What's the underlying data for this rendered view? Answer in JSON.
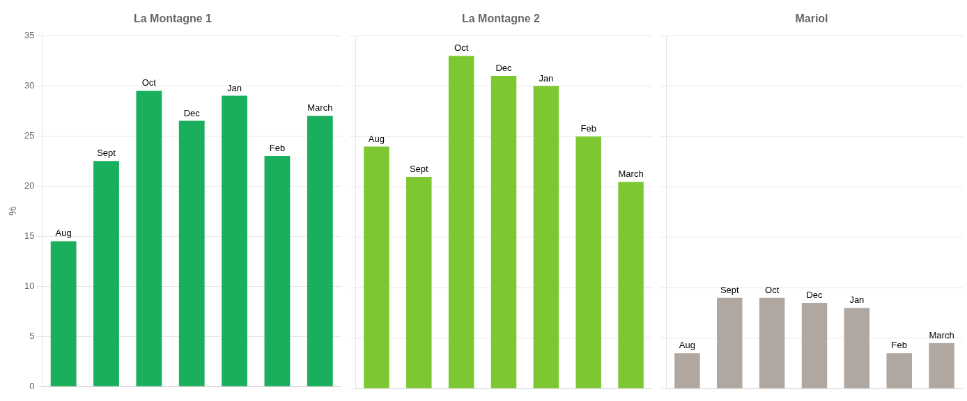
{
  "chart_data": [
    {
      "type": "bar",
      "title": "La Montagne 1",
      "categories": [
        "Aug",
        "Sept",
        "Oct",
        "Dec",
        "Jan",
        "Feb",
        "March"
      ],
      "values": [
        14.5,
        22.5,
        29.5,
        26.5,
        29.0,
        23.0,
        27.0
      ],
      "color": "#1aaf5d",
      "y_label": "%",
      "ylim": [
        0,
        35
      ],
      "yticks": [
        0,
        5,
        10,
        15,
        20,
        25,
        30,
        35
      ],
      "grid": true,
      "tick_labels": "y"
    },
    {
      "type": "bar",
      "title": "La Montagne 2",
      "categories": [
        "Aug",
        "Sept",
        "Oct",
        "Dec",
        "Jan",
        "Feb",
        "March"
      ],
      "values": [
        24.0,
        21.0,
        33.0,
        31.0,
        30.0,
        25.0,
        20.5
      ],
      "color": "#7dc832",
      "ylim": [
        0,
        35
      ],
      "yticks": [
        0,
        5,
        10,
        15,
        20,
        25,
        30,
        35
      ],
      "grid": true,
      "tick_labels": false
    },
    {
      "type": "bar",
      "title": "Mariol",
      "categories": [
        "Aug",
        "Sept",
        "Oct",
        "Dec",
        "Jan",
        "Feb",
        "March"
      ],
      "values": [
        3.5,
        9.0,
        9.0,
        8.5,
        8.0,
        3.5,
        4.5
      ],
      "color": "#b0a8a0",
      "ylim": [
        0,
        35
      ],
      "yticks": [
        0,
        5,
        10,
        15,
        20,
        25,
        30,
        35
      ],
      "grid": true,
      "tick_labels": false
    }
  ]
}
